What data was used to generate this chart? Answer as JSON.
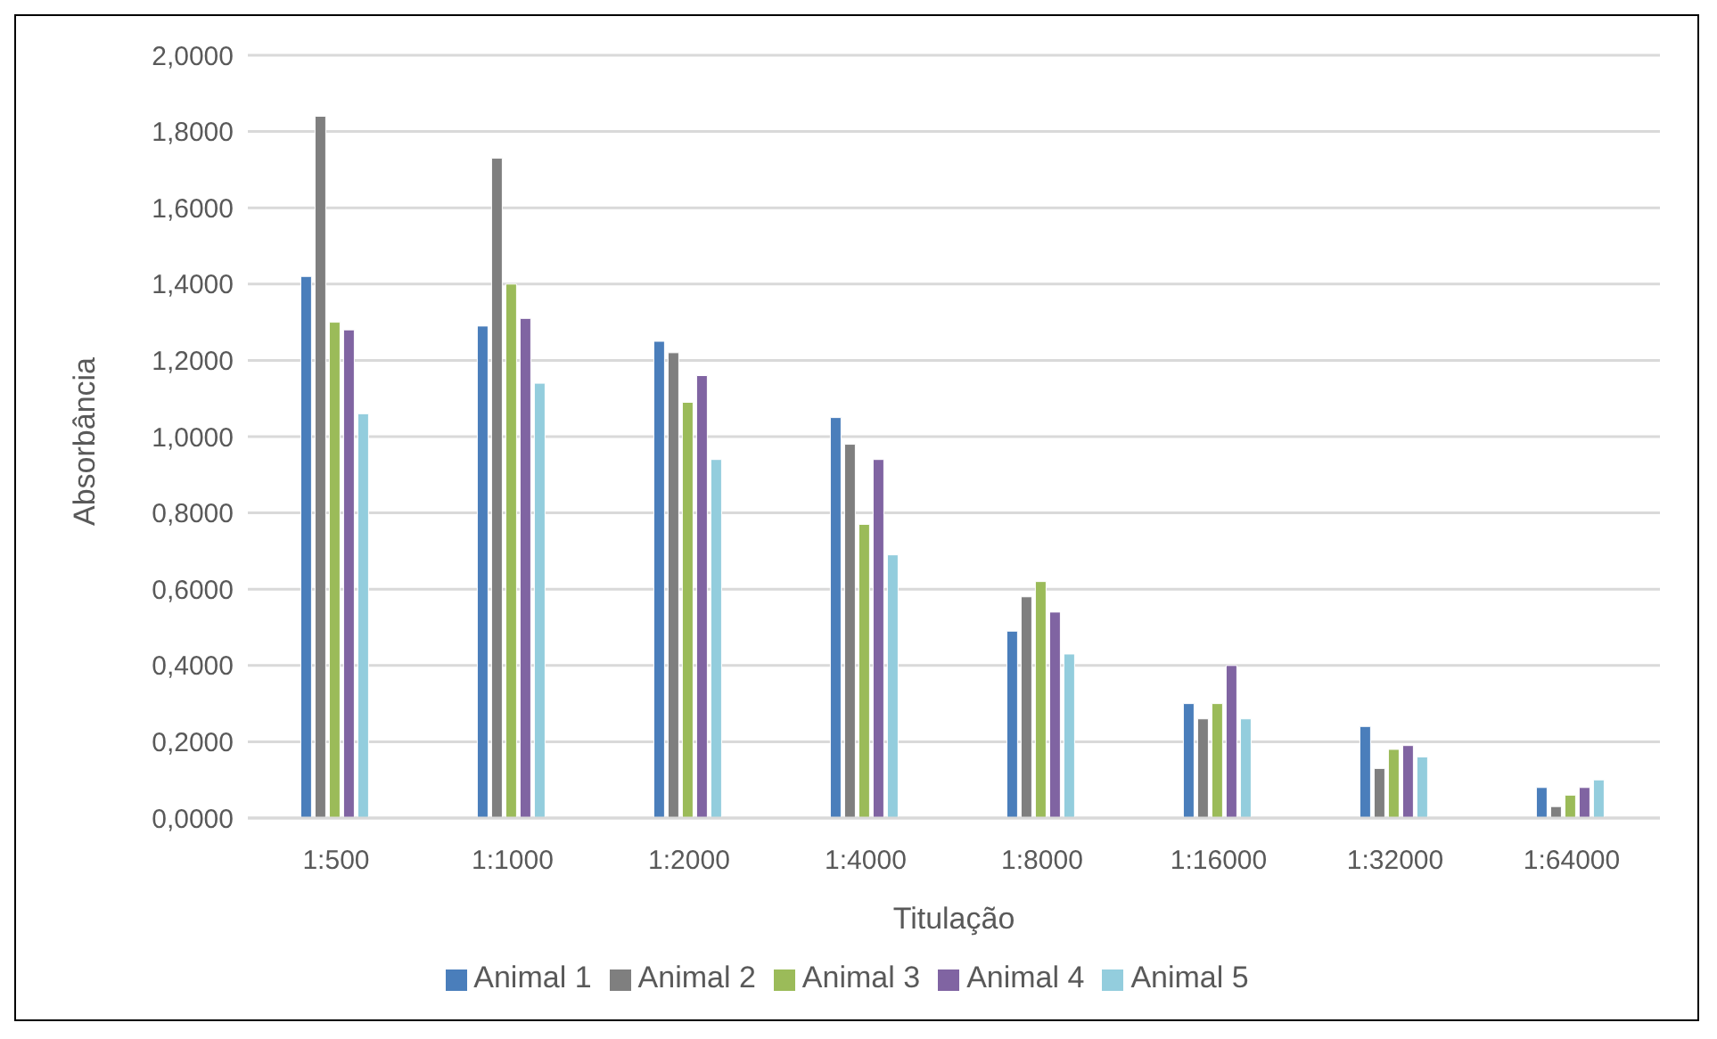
{
  "chart_data": {
    "type": "bar",
    "xlabel": "Titulação",
    "ylabel": "Absorbância",
    "categories": [
      "1:500",
      "1:1000",
      "1:2000",
      "1:4000",
      "1:8000",
      "1:16000",
      "1:32000",
      "1:64000"
    ],
    "series": [
      {
        "name": "Animal 1",
        "color": "#4a7ebb",
        "values": [
          1.42,
          1.29,
          1.25,
          1.05,
          0.49,
          0.3,
          0.24,
          0.08
        ]
      },
      {
        "name": "Animal 2",
        "color": "#7f7f7f",
        "values": [
          1.84,
          1.73,
          1.22,
          0.98,
          0.58,
          0.26,
          0.13,
          0.03
        ]
      },
      {
        "name": "Animal 3",
        "color": "#9bbb59",
        "values": [
          1.3,
          1.4,
          1.09,
          0.77,
          0.62,
          0.3,
          0.18,
          0.06
        ]
      },
      {
        "name": "Animal 4",
        "color": "#8064a2",
        "values": [
          1.28,
          1.31,
          1.16,
          0.94,
          0.54,
          0.4,
          0.19,
          0.08
        ]
      },
      {
        "name": "Animal 5",
        "color": "#93cddd",
        "values": [
          1.06,
          1.14,
          0.94,
          0.69,
          0.43,
          0.26,
          0.16,
          0.1
        ]
      }
    ],
    "ylim": [
      0,
      2
    ],
    "yticks": [
      {
        "value": 0,
        "label": "0,0000"
      },
      {
        "value": 0.2,
        "label": "0,2000"
      },
      {
        "value": 0.4,
        "label": "0,4000"
      },
      {
        "value": 0.6,
        "label": "0,6000"
      },
      {
        "value": 0.8,
        "label": "0,8000"
      },
      {
        "value": 1,
        "label": "1,0000"
      },
      {
        "value": 1.2,
        "label": "1,2000"
      },
      {
        "value": 1.4,
        "label": "1,4000"
      },
      {
        "value": 1.6,
        "label": "1,6000"
      },
      {
        "value": 1.8,
        "label": "1,8000"
      },
      {
        "value": 2,
        "label": "2,0000"
      }
    ],
    "grid": "y",
    "legend": "bottom"
  }
}
